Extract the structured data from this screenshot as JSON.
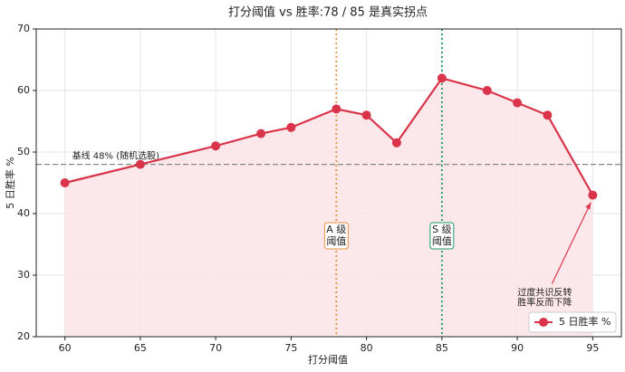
{
  "chart_data": {
    "type": "line",
    "title": "打分阈值 vs 胜率:78 / 85 是真实拐点",
    "x_label": "打分阈值",
    "y_label": "5 日胜率 %",
    "x": [
      60,
      65,
      70,
      73,
      75,
      78,
      80,
      82,
      85,
      88,
      90,
      92,
      95
    ],
    "series": [
      {
        "name": "5 日胜率 %",
        "color": "#d9344a",
        "values": [
          45,
          48,
          51,
          53,
          54,
          57,
          56,
          51.5,
          62,
          60,
          58,
          56,
          43
        ]
      }
    ],
    "area_color": "#fce4e8",
    "xlim": [
      58.1,
      96.9
    ],
    "ylim": [
      20,
      70
    ],
    "xticks": [
      60,
      65,
      70,
      75,
      80,
      85,
      90,
      95
    ],
    "yticks": [
      20,
      30,
      40,
      50,
      60,
      70
    ],
    "grid": true,
    "legend": "lower right",
    "baseline": {
      "value": 48,
      "label": "基线 48% (随机选股)",
      "color": "#888888"
    },
    "vlines": [
      {
        "value": 78,
        "label_lines": [
          "A 级",
          "阈值"
        ],
        "color": "#e8913a"
      },
      {
        "value": 85,
        "label_lines": [
          "S 级",
          "阈值"
        ],
        "color": "#1a9a6c"
      }
    ],
    "annotation": {
      "lines": [
        "过度共识反转",
        "胜率反而下降"
      ],
      "color": "#d9344a"
    }
  }
}
